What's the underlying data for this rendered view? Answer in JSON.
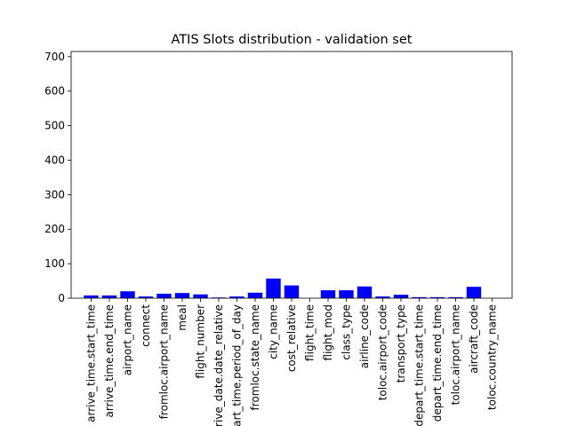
{
  "chart_data": {
    "type": "bar",
    "title": "ATIS Slots distribution - validation set",
    "xlabel": "",
    "ylabel": "",
    "ylim": [
      0,
      715
    ],
    "yticks": [
      0,
      100,
      200,
      300,
      400,
      500,
      600,
      700
    ],
    "grid": false,
    "bar_color": "#0000ff",
    "categories": [
      "arrive_time.start_time",
      "arrive_time.end_time",
      "airport_name",
      "connect",
      "fromloc.airport_name",
      "meal",
      "flight_number",
      "arrive_date.date_relative",
      "depart_time.period_of_day",
      "fromloc.state_name",
      "city_name",
      "cost_relative",
      "flight_time",
      "flight_mod",
      "class_type",
      "airline_code",
      "toloc.airport_code",
      "transport_type",
      "depart_time.start_time",
      "depart_time.end_time",
      "toloc.airport_name",
      "aircraft_code",
      "toloc.country_name"
    ],
    "values": [
      8,
      8,
      20,
      5,
      13,
      15,
      11,
      2,
      5,
      16,
      57,
      37,
      0,
      23,
      23,
      34,
      5,
      10,
      3,
      3,
      3,
      33,
      0
    ]
  }
}
